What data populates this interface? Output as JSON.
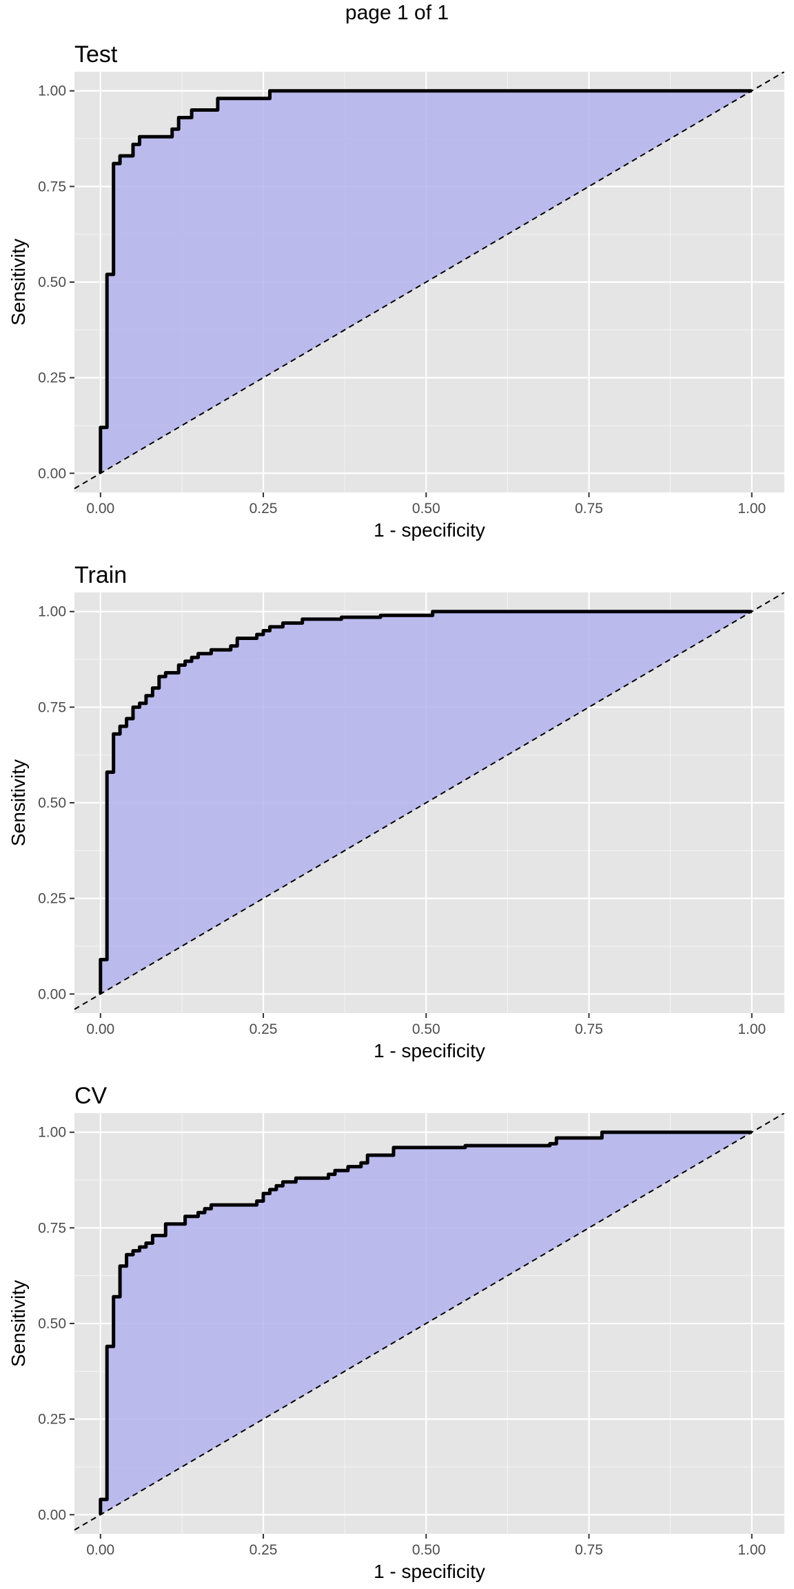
{
  "page_label": "page 1 of 1",
  "colors": {
    "panel_bg": "#e5e5e5",
    "grid": "#ffffff",
    "fill": "#b3b3ee",
    "curve": "#000000",
    "diagonal": "#000000"
  },
  "chart_data": [
    {
      "type": "area",
      "title": "Test",
      "xlabel": "1 - specificity",
      "ylabel": "Sensitivity",
      "xlim": [
        -0.04,
        1.05
      ],
      "ylim": [
        -0.05,
        1.05
      ],
      "xticks": [
        "0.00",
        "0.25",
        "0.50",
        "0.75",
        "1.00"
      ],
      "yticks": [
        "0.00",
        "0.25",
        "0.50",
        "0.75",
        "1.00"
      ],
      "grid": true,
      "reference_line": "diagonal",
      "x": [
        0,
        0,
        0.01,
        0.01,
        0.02,
        0.02,
        0.03,
        0.03,
        0.05,
        0.05,
        0.06,
        0.06,
        0.11,
        0.11,
        0.12,
        0.12,
        0.14,
        0.14,
        0.18,
        0.18,
        0.26,
        0.26,
        1.0
      ],
      "y": [
        0,
        0.12,
        0.12,
        0.52,
        0.52,
        0.81,
        0.81,
        0.83,
        0.83,
        0.86,
        0.86,
        0.88,
        0.88,
        0.9,
        0.9,
        0.93,
        0.93,
        0.95,
        0.95,
        0.98,
        0.98,
        1.0,
        1.0
      ]
    },
    {
      "type": "area",
      "title": "Train",
      "xlabel": "1 - specificity",
      "ylabel": "Sensitivity",
      "xlim": [
        -0.04,
        1.05
      ],
      "ylim": [
        -0.05,
        1.05
      ],
      "xticks": [
        "0.00",
        "0.25",
        "0.50",
        "0.75",
        "1.00"
      ],
      "yticks": [
        "0.00",
        "0.25",
        "0.50",
        "0.75",
        "1.00"
      ],
      "grid": true,
      "reference_line": "diagonal",
      "x": [
        0,
        0,
        0.01,
        0.01,
        0.02,
        0.02,
        0.03,
        0.03,
        0.04,
        0.04,
        0.05,
        0.05,
        0.06,
        0.06,
        0.07,
        0.07,
        0.08,
        0.08,
        0.09,
        0.09,
        0.1,
        0.1,
        0.12,
        0.12,
        0.13,
        0.13,
        0.14,
        0.14,
        0.15,
        0.15,
        0.17,
        0.17,
        0.2,
        0.2,
        0.21,
        0.21,
        0.24,
        0.24,
        0.25,
        0.25,
        0.26,
        0.26,
        0.28,
        0.28,
        0.31,
        0.31,
        0.37,
        0.37,
        0.43,
        0.43,
        0.51,
        0.51,
        1.0
      ],
      "y": [
        0,
        0.09,
        0.09,
        0.58,
        0.58,
        0.68,
        0.68,
        0.7,
        0.7,
        0.72,
        0.72,
        0.75,
        0.75,
        0.76,
        0.76,
        0.78,
        0.78,
        0.8,
        0.8,
        0.83,
        0.83,
        0.84,
        0.84,
        0.86,
        0.86,
        0.87,
        0.87,
        0.88,
        0.88,
        0.89,
        0.89,
        0.9,
        0.9,
        0.91,
        0.91,
        0.93,
        0.93,
        0.94,
        0.94,
        0.95,
        0.95,
        0.96,
        0.96,
        0.97,
        0.97,
        0.98,
        0.98,
        0.985,
        0.985,
        0.99,
        0.99,
        1.0,
        1.0
      ]
    },
    {
      "type": "area",
      "title": "CV",
      "xlabel": "1 - specificity",
      "ylabel": "Sensitivity",
      "xlim": [
        -0.04,
        1.05
      ],
      "ylim": [
        -0.05,
        1.05
      ],
      "xticks": [
        "0.00",
        "0.25",
        "0.50",
        "0.75",
        "1.00"
      ],
      "yticks": [
        "0.00",
        "0.25",
        "0.50",
        "0.75",
        "1.00"
      ],
      "grid": true,
      "reference_line": "diagonal",
      "x": [
        0,
        0,
        0.01,
        0.01,
        0.02,
        0.02,
        0.03,
        0.03,
        0.04,
        0.04,
        0.05,
        0.05,
        0.06,
        0.06,
        0.07,
        0.07,
        0.08,
        0.08,
        0.1,
        0.1,
        0.13,
        0.13,
        0.15,
        0.15,
        0.16,
        0.16,
        0.17,
        0.17,
        0.24,
        0.24,
        0.25,
        0.25,
        0.26,
        0.26,
        0.27,
        0.27,
        0.28,
        0.28,
        0.3,
        0.3,
        0.35,
        0.35,
        0.36,
        0.36,
        0.38,
        0.38,
        0.4,
        0.4,
        0.41,
        0.41,
        0.45,
        0.45,
        0.56,
        0.56,
        0.69,
        0.69,
        0.7,
        0.7,
        0.77,
        0.77,
        1.0
      ],
      "y": [
        0,
        0.04,
        0.04,
        0.44,
        0.44,
        0.57,
        0.57,
        0.65,
        0.65,
        0.68,
        0.68,
        0.69,
        0.69,
        0.7,
        0.7,
        0.71,
        0.71,
        0.73,
        0.73,
        0.76,
        0.76,
        0.78,
        0.78,
        0.79,
        0.79,
        0.8,
        0.8,
        0.81,
        0.81,
        0.82,
        0.82,
        0.84,
        0.84,
        0.85,
        0.85,
        0.86,
        0.86,
        0.87,
        0.87,
        0.88,
        0.88,
        0.89,
        0.89,
        0.9,
        0.9,
        0.91,
        0.91,
        0.92,
        0.92,
        0.94,
        0.94,
        0.96,
        0.96,
        0.965,
        0.965,
        0.97,
        0.97,
        0.985,
        0.985,
        1.0,
        1.0
      ]
    }
  ]
}
